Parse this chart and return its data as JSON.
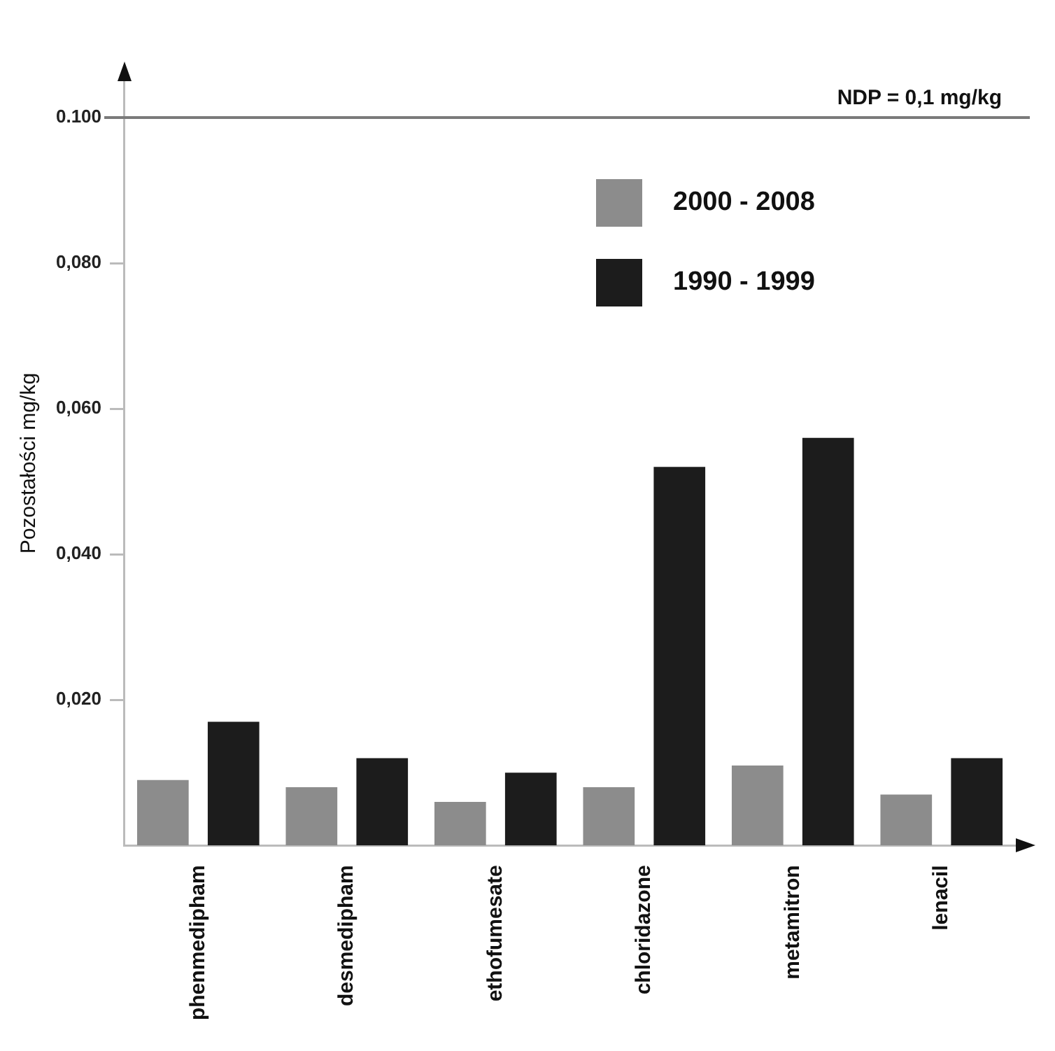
{
  "chart_data": {
    "type": "bar",
    "ylabel": "Pozostałości mg/kg",
    "categories": [
      "phenmedipham",
      "desmedipham",
      "ethofumesate",
      "chloridazone",
      "metamitron",
      "lenacil"
    ],
    "series": [
      {
        "name": "2000 - 2008",
        "color": "#8c8c8c",
        "values": [
          0.009,
          0.008,
          0.006,
          0.008,
          0.011,
          0.007
        ]
      },
      {
        "name": "1990 - 1999",
        "color": "#1c1c1c",
        "values": [
          0.017,
          0.012,
          0.01,
          0.052,
          0.056,
          0.012
        ]
      }
    ],
    "ylim": [
      0,
      0.105
    ],
    "yticks": [
      {
        "value": 0.02,
        "label": "0,020"
      },
      {
        "value": 0.04,
        "label": "0,040"
      },
      {
        "value": 0.06,
        "label": "0,060"
      },
      {
        "value": 0.08,
        "label": "0,080"
      },
      {
        "value": 0.1,
        "label": "0.100"
      }
    ],
    "ref_lines": [
      {
        "axis": "y",
        "value": 0.1,
        "label": "NDP = 0,1 mg/kg",
        "color": "#7a7a7a"
      }
    ],
    "legend": "top right",
    "grid": false
  }
}
